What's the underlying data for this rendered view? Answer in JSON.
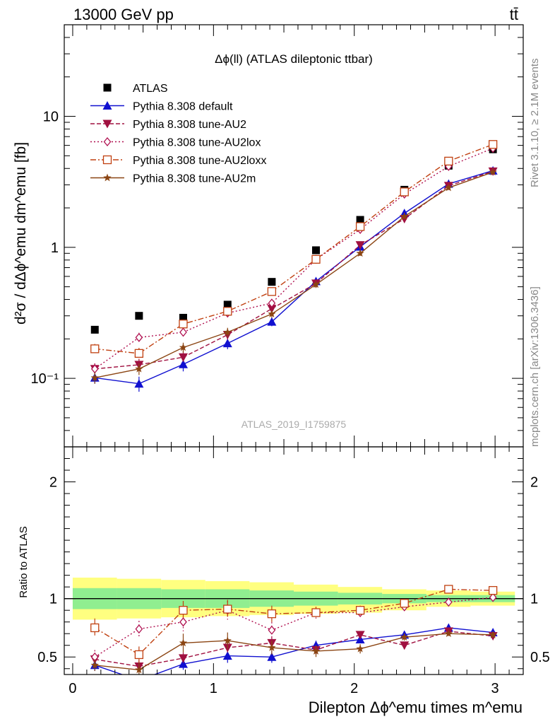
{
  "header": {
    "energy_label": "13000 GeV pp",
    "process_label": "tt̄"
  },
  "side_labels": {
    "rivet": "Rivet 3.1.10, ≥ 2.1M events",
    "mcplots": "mcplots.cern.ch [arXiv:1306.3436]"
  },
  "watermark": "ATLAS_2019_I1759875",
  "chart_data": [
    {
      "type": "scatter",
      "title": "Δϕ(ll) (ATLAS dileptonic ttbar)",
      "ylabel": "d²σ / dΔϕ^emu dm^emu [fb]",
      "yscale": "log",
      "ylim": [
        0.03,
        50
      ],
      "xlim": [
        -0.06,
        3.2
      ],
      "x": [
        0.157,
        0.471,
        0.785,
        1.1,
        1.414,
        1.728,
        2.042,
        2.356,
        2.67,
        2.985
      ],
      "x_tick_labels": [
        "0",
        "1",
        "2",
        "3"
      ],
      "y_tick_labels": [
        "10⁻¹",
        "1",
        "10"
      ],
      "legend_position": "top-left",
      "series": [
        {
          "name": "ATLAS",
          "color": "#000000",
          "style": "marker",
          "marker": "square",
          "values": [
            0.235,
            0.3,
            0.29,
            0.365,
            0.545,
            0.95,
            1.62,
            2.75,
            4.2,
            5.6
          ]
        },
        {
          "name": "Pythia 8.308 default",
          "color": "#1010d0",
          "style": "solid",
          "marker": "triangle-up",
          "values": [
            0.101,
            0.091,
            0.128,
            0.185,
            0.27,
            0.55,
            1.01,
            1.82,
            3.05,
            3.85
          ],
          "errors": [
            0.01,
            0.012,
            0.015,
            0.018,
            0.02,
            0.03,
            0.04,
            0.06,
            0.07,
            0.08
          ]
        },
        {
          "name": "Pythia 8.308 tune-AU2",
          "color": "#a01040",
          "style": "dashed",
          "marker": "triangle-down",
          "values": [
            0.118,
            0.127,
            0.145,
            0.215,
            0.34,
            0.53,
            1.04,
            1.65,
            2.95,
            3.8
          ],
          "errors": [
            0.012,
            0.014,
            0.016,
            0.018,
            0.02,
            0.03,
            0.04,
            0.05,
            0.06,
            0.08
          ]
        },
        {
          "name": "Pythia 8.308 tune-AU2lox",
          "color": "#b01050",
          "style": "dotted",
          "marker": "diamond-open",
          "values": [
            0.118,
            0.205,
            0.225,
            0.315,
            0.375,
            0.81,
            1.37,
            2.55,
            4.15,
            5.7
          ],
          "errors": [
            0.012,
            0.018,
            0.02,
            0.025,
            0.028,
            0.04,
            0.05,
            0.08,
            0.1,
            0.12
          ]
        },
        {
          "name": "Pythia 8.308 tune-AU2loxx",
          "color": "#c04010",
          "style": "dashdot",
          "marker": "square-open",
          "values": [
            0.168,
            0.155,
            0.26,
            0.325,
            0.46,
            0.81,
            1.44,
            2.65,
            4.55,
            6.1
          ],
          "errors": [
            0.015,
            0.016,
            0.02,
            0.025,
            0.03,
            0.04,
            0.05,
            0.08,
            0.1,
            0.12
          ]
        },
        {
          "name": "Pythia 8.308 tune-AU2m",
          "color": "#8b4513",
          "style": "solid",
          "marker": "star",
          "values": [
            0.101,
            0.118,
            0.172,
            0.225,
            0.31,
            0.52,
            0.9,
            1.72,
            2.85,
            3.75
          ],
          "errors": [
            0.01,
            0.012,
            0.015,
            0.018,
            0.02,
            0.03,
            0.04,
            0.06,
            0.07,
            0.08
          ]
        }
      ]
    },
    {
      "type": "scatter",
      "ylabel": "Ratio to ATLAS",
      "xlabel": "Dilepton Δϕ^emu times m^emu",
      "ylim": [
        0.35,
        2.3
      ],
      "xlim": [
        -0.06,
        3.2
      ],
      "x_tick_labels": [
        "0",
        "1",
        "2",
        "3"
      ],
      "y_tick_labels": [
        "0.5",
        "1",
        "2"
      ],
      "reference_line": 1,
      "band_edges": [
        0,
        0.314,
        0.628,
        0.942,
        1.256,
        1.57,
        1.884,
        2.198,
        2.512,
        2.826,
        3.141
      ],
      "uncertainty_bands": {
        "outer": {
          "color": "#ffff80",
          "low": [
            0.82,
            0.83,
            0.84,
            0.85,
            0.86,
            0.87,
            0.88,
            0.9,
            0.93,
            0.94
          ],
          "high": [
            1.18,
            1.17,
            1.16,
            1.15,
            1.14,
            1.12,
            1.1,
            1.08,
            1.07,
            1.06
          ]
        },
        "inner": {
          "color": "#90ee90",
          "low": [
            0.91,
            0.91,
            0.92,
            0.92,
            0.93,
            0.94,
            0.95,
            0.96,
            0.97,
            0.97
          ],
          "high": [
            1.09,
            1.09,
            1.08,
            1.08,
            1.07,
            1.06,
            1.05,
            1.04,
            1.03,
            1.03
          ]
        }
      },
      "series": [
        {
          "name": "Pythia 8.308 default",
          "values": [
            0.43,
            0.3,
            0.44,
            0.51,
            0.5,
            0.6,
            0.65,
            0.69,
            0.75,
            0.71
          ],
          "errors": [
            0.05,
            0.05,
            0.05,
            0.06,
            0.05,
            0.04,
            0.03,
            0.03,
            0.02,
            0.02
          ]
        },
        {
          "name": "Pythia 8.308 tune-AU2",
          "values": [
            0.48,
            0.42,
            0.49,
            0.58,
            0.62,
            0.56,
            0.69,
            0.6,
            0.72,
            0.68
          ],
          "errors": [
            0.05,
            0.05,
            0.05,
            0.05,
            0.05,
            0.04,
            0.03,
            0.03,
            0.02,
            0.02
          ]
        },
        {
          "name": "Pythia 8.308 tune-AU2lox",
          "values": [
            0.5,
            0.74,
            0.8,
            0.9,
            0.73,
            0.88,
            0.88,
            0.93,
            0.97,
            1.01
          ],
          "errors": [
            0.06,
            0.07,
            0.08,
            0.08,
            0.07,
            0.05,
            0.04,
            0.03,
            0.02,
            0.02
          ]
        },
        {
          "name": "Pythia 8.308 tune-AU2loxx",
          "values": [
            0.75,
            0.52,
            0.9,
            0.91,
            0.87,
            0.88,
            0.9,
            0.96,
            1.08,
            1.07
          ],
          "errors": [
            0.08,
            0.07,
            0.08,
            0.08,
            0.07,
            0.05,
            0.04,
            0.03,
            0.02,
            0.02
          ]
        },
        {
          "name": "Pythia 8.308 tune-AU2m",
          "values": [
            0.43,
            0.39,
            0.62,
            0.64,
            0.58,
            0.55,
            0.57,
            0.67,
            0.7,
            0.69
          ],
          "errors": [
            0.05,
            0.06,
            0.08,
            0.07,
            0.06,
            0.05,
            0.04,
            0.03,
            0.02,
            0.02
          ]
        }
      ]
    }
  ]
}
